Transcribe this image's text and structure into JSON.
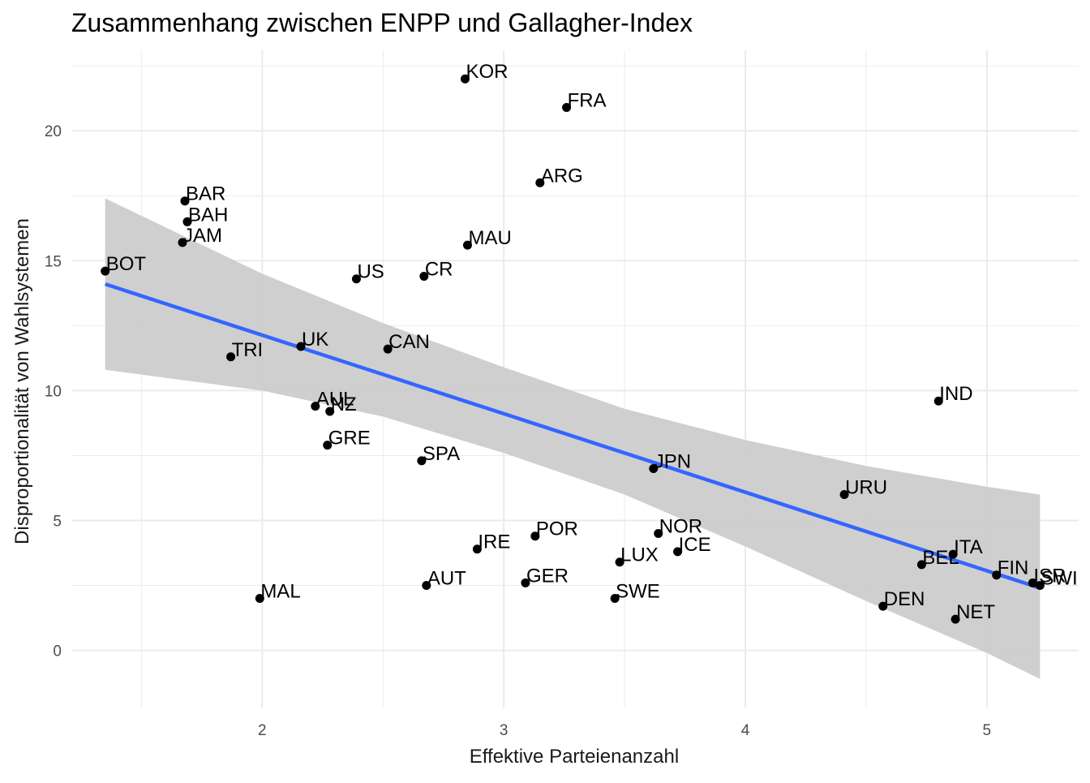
{
  "chart_data": {
    "type": "scatter",
    "title": "Zusammenhang zwischen ENPP und Gallagher-Index",
    "xlabel": "Effektive Parteienanzahl",
    "ylabel": "Disproportionalität von Wahlsystemen",
    "xlim": [
      1.21,
      5.38
    ],
    "ylim": [
      -2.2,
      23.1
    ],
    "x_ticks": [
      2,
      3,
      4,
      5
    ],
    "y_ticks": [
      0,
      5,
      10,
      15,
      20
    ],
    "grid": true,
    "legend": "none",
    "points": [
      {
        "label": "KOR",
        "x": 2.84,
        "y": 22.0
      },
      {
        "label": "FRA",
        "x": 3.26,
        "y": 20.9
      },
      {
        "label": "ARG",
        "x": 3.15,
        "y": 18.0
      },
      {
        "label": "BAR",
        "x": 1.68,
        "y": 17.3
      },
      {
        "label": "BAH",
        "x": 1.69,
        "y": 16.5
      },
      {
        "label": "JAM",
        "x": 1.67,
        "y": 15.7
      },
      {
        "label": "MAU",
        "x": 2.85,
        "y": 15.6
      },
      {
        "label": "BOT",
        "x": 1.35,
        "y": 14.6
      },
      {
        "label": "US",
        "x": 2.39,
        "y": 14.3
      },
      {
        "label": "CR",
        "x": 2.67,
        "y": 14.4
      },
      {
        "label": "UK",
        "x": 2.16,
        "y": 11.7
      },
      {
        "label": "CAN",
        "x": 2.52,
        "y": 11.6
      },
      {
        "label": "TRI",
        "x": 1.87,
        "y": 11.3
      },
      {
        "label": "IND",
        "x": 4.8,
        "y": 9.6
      },
      {
        "label": "AUL",
        "x": 2.22,
        "y": 9.4
      },
      {
        "label": "NZ",
        "x": 2.28,
        "y": 9.2
      },
      {
        "label": "GRE",
        "x": 2.27,
        "y": 7.9
      },
      {
        "label": "SPA",
        "x": 2.66,
        "y": 7.3
      },
      {
        "label": "JPN",
        "x": 3.62,
        "y": 7.0
      },
      {
        "label": "URU",
        "x": 4.41,
        "y": 6.0
      },
      {
        "label": "NOR",
        "x": 3.64,
        "y": 4.5
      },
      {
        "label": "POR",
        "x": 3.13,
        "y": 4.4
      },
      {
        "label": "IRE",
        "x": 2.89,
        "y": 3.9
      },
      {
        "label": "ICE",
        "x": 3.72,
        "y": 3.8
      },
      {
        "label": "ITA",
        "x": 4.86,
        "y": 3.7
      },
      {
        "label": "LUX",
        "x": 3.48,
        "y": 3.4
      },
      {
        "label": "BEL",
        "x": 4.73,
        "y": 3.3
      },
      {
        "label": "FIN",
        "x": 5.04,
        "y": 2.9
      },
      {
        "label": "ISR",
        "x": 5.19,
        "y": 2.6
      },
      {
        "label": "SWI",
        "x": 5.22,
        "y": 2.5
      },
      {
        "label": "GER",
        "x": 3.09,
        "y": 2.6
      },
      {
        "label": "AUT",
        "x": 2.68,
        "y": 2.5
      },
      {
        "label": "MAL",
        "x": 1.99,
        "y": 2.0
      },
      {
        "label": "SWE",
        "x": 3.46,
        "y": 2.0
      },
      {
        "label": "DEN",
        "x": 4.57,
        "y": 1.7
      },
      {
        "label": "NET",
        "x": 4.87,
        "y": 1.2
      }
    ],
    "trend_line": {
      "method": "linear",
      "x": [
        1.35,
        5.22
      ],
      "y": [
        14.1,
        2.4
      ],
      "color": "#3366ff"
    },
    "confidence_band": {
      "x": [
        1.35,
        2.0,
        2.5,
        3.0,
        3.5,
        4.0,
        4.5,
        5.0,
        5.22
      ],
      "upper": [
        17.4,
        14.5,
        12.6,
        10.9,
        9.3,
        8.1,
        7.1,
        6.3,
        6.0
      ],
      "lower": [
        10.8,
        10.0,
        9.0,
        7.6,
        6.0,
        4.0,
        1.9,
        -0.1,
        -1.1
      ],
      "color": "#cccccc"
    },
    "colors": {
      "point": "#000000",
      "line": "#3366ff",
      "band": "#999999",
      "grid_major": "#ebebeb",
      "grid_minor": "#f5f5f5"
    }
  }
}
